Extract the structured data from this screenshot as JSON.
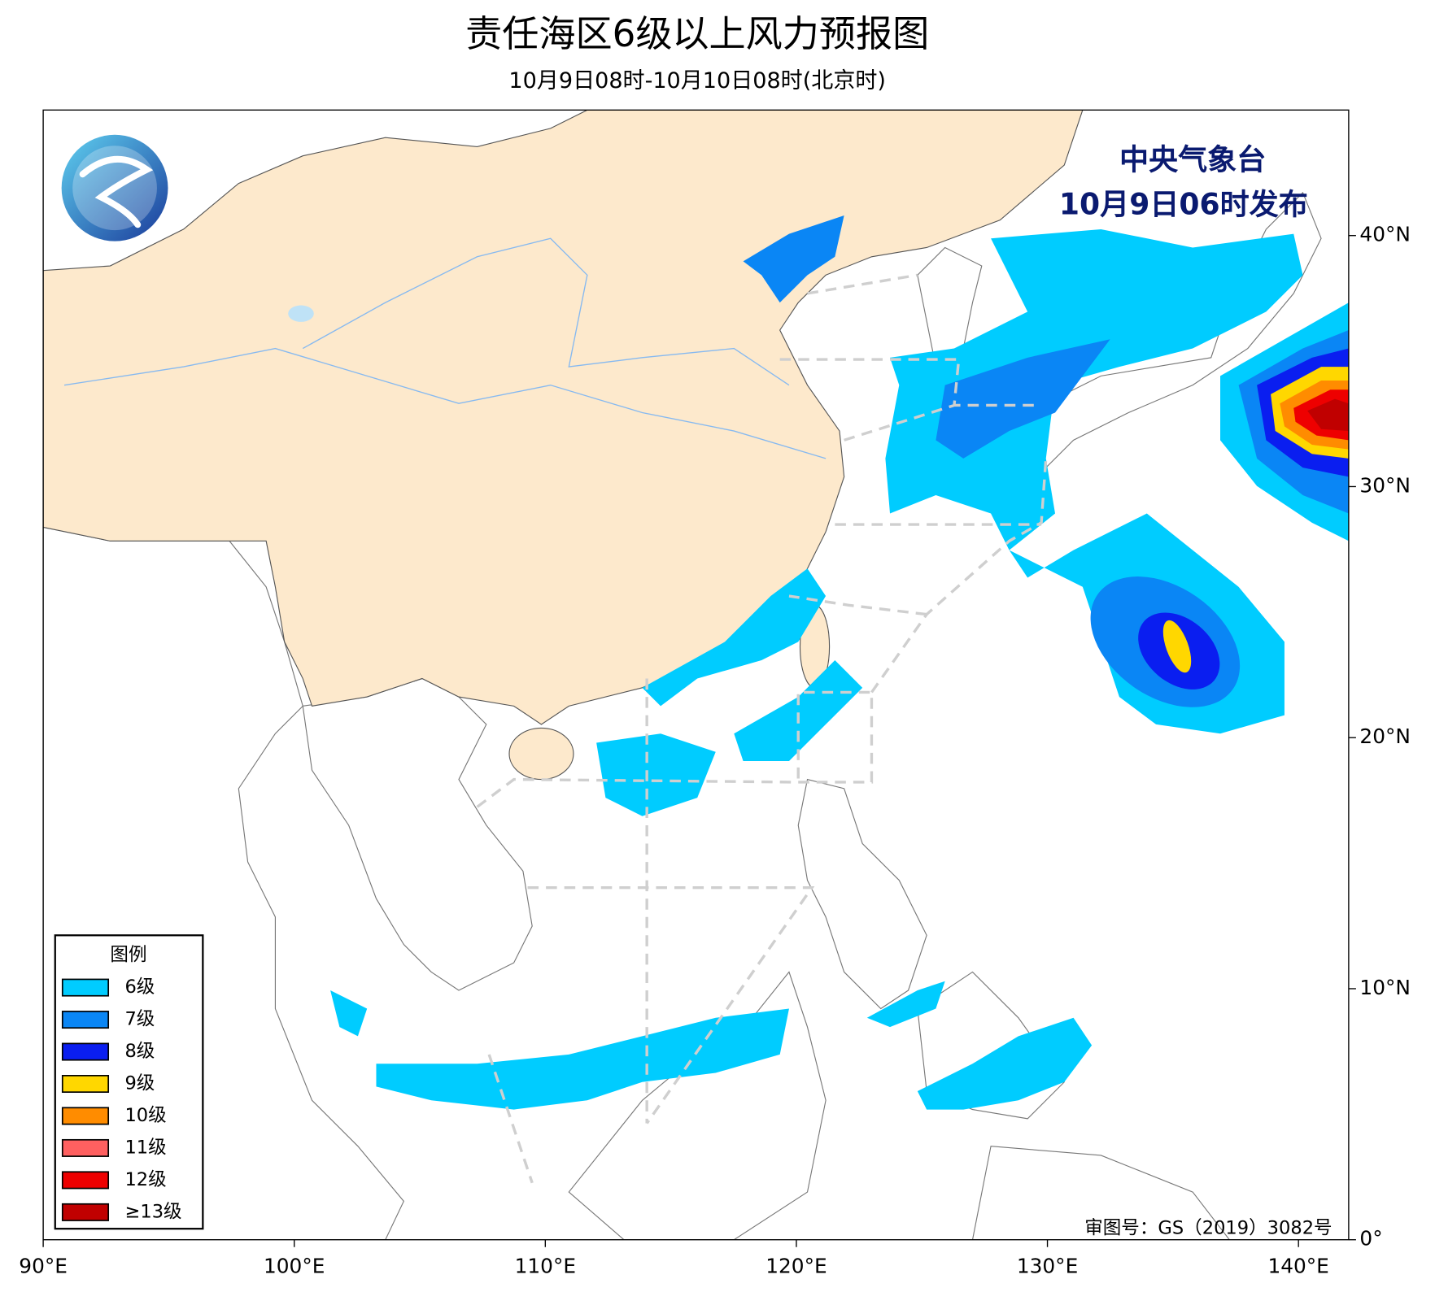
{
  "header": {
    "title": "责任海区6级以上风力预报图",
    "subtitle": "10月9日08时-10月10日08时(北京时)"
  },
  "issuer": {
    "agency": "中央气象台",
    "time": "10月9日06时发布"
  },
  "approval": "审图号：GS（2019）3082号",
  "legend": {
    "title": "图例",
    "items": [
      {
        "label": "6级",
        "color": "#00ccff"
      },
      {
        "label": "7级",
        "color": "#0a86f5"
      },
      {
        "label": "8级",
        "color": "#0a1ef0"
      },
      {
        "label": "9级",
        "color": "#ffd700"
      },
      {
        "label": "10级",
        "color": "#ff8c00"
      },
      {
        "label": "11级",
        "color": "#ff6060"
      },
      {
        "label": "12级",
        "color": "#ee0000"
      },
      {
        "label": "≥13级",
        "color": "#c00000"
      }
    ]
  },
  "map": {
    "xlim": [
      90,
      142
    ],
    "ylim": [
      0,
      45
    ],
    "xticks": [
      {
        "value": 90,
        "label": "90°E"
      },
      {
        "value": 100,
        "label": "100°E"
      },
      {
        "value": 110,
        "label": "110°E"
      },
      {
        "value": 120,
        "label": "120°E"
      },
      {
        "value": 130,
        "label": "130°E"
      },
      {
        "value": 140,
        "label": "140°E"
      }
    ],
    "yticks": [
      {
        "value": 0,
        "label": "0°"
      },
      {
        "value": 10,
        "label": "10°N"
      },
      {
        "value": 20,
        "label": "20°N"
      },
      {
        "value": 30,
        "label": "30°N"
      },
      {
        "value": 40,
        "label": "40°N"
      }
    ]
  }
}
